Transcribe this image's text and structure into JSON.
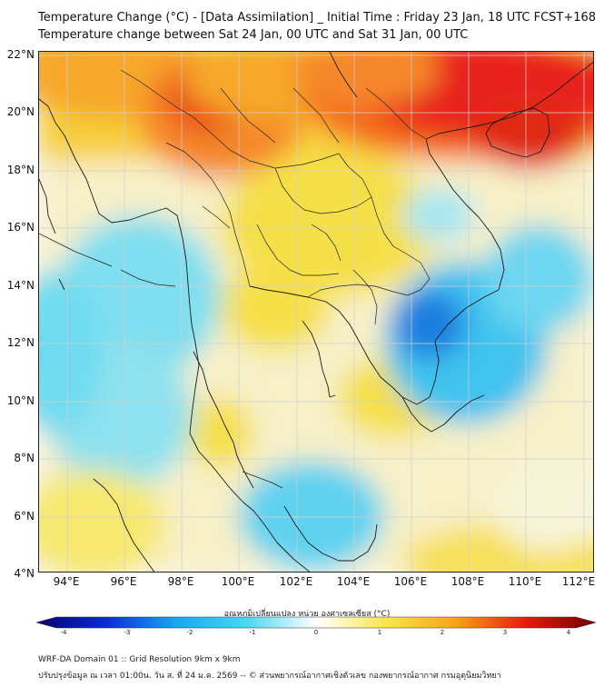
{
  "title_line1": "Temperature Change (°C) - [Data Assimilation] _ Initial Time : Friday 23 Jan, 18 UTC FCST+168",
  "title_line2": "Temperature change between Sat 24 Jan, 00 UTC and Sat 31 Jan, 00 UTC",
  "lat_labels": [
    "22°N",
    "20°N",
    "18°N",
    "16°N",
    "14°N",
    "12°N",
    "10°N",
    "8°N",
    "6°N",
    "4°N"
  ],
  "lon_labels": [
    "94°E",
    "96°E",
    "98°E",
    "100°E",
    "102°E",
    "104°E",
    "106°E",
    "108°E",
    "110°E",
    "112°E"
  ],
  "colorbar": {
    "title": "อุณหภูมิเปลี่ยนแปลง หน่วย องศาเซลเซียส (°C)",
    "ticks": [
      "-4",
      "-3",
      "-2",
      "-1",
      "0",
      "1",
      "2",
      "3",
      "4"
    ],
    "colors": [
      "#08006e",
      "#0a2bd6",
      "#1aa7ef",
      "#49d8f1",
      "#ffffff",
      "#f6e84a",
      "#f7a219",
      "#e81a0c",
      "#6e0000"
    ]
  },
  "footer_line1": "WRF-DA Domain 01 :: Grid Resolution 9km x 9km",
  "footer_line2": "ปรับปรุงข้อมูล ณ เวลา 01:00น. วัน ส. ที่ 24 ม.ค. 2569 -- © ส่วนพยากรณ์อากาศเชิงตัวเลข กองพยากรณ์อากาศ กรมอุตุนิยมวิทยา"
}
